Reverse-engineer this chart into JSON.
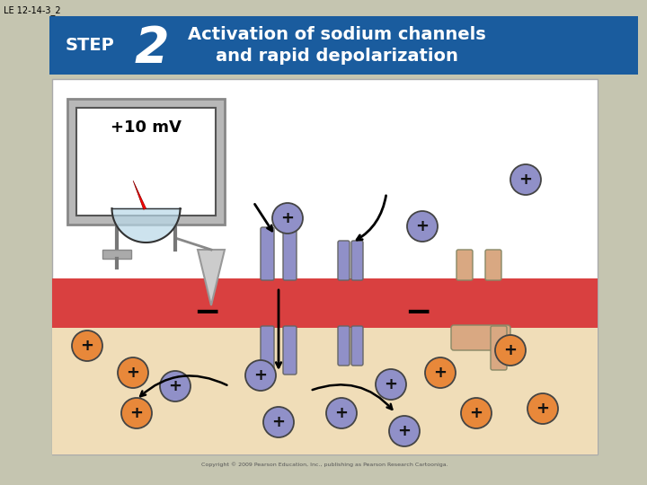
{
  "title_text": "Activation of sodium channels\nand rapid depolarization",
  "step_label": "STEP",
  "step_number": "2",
  "header_bg": "#1a5c9e",
  "outer_bg": "#c5c5b0",
  "inner_bg": "#ffffff",
  "membrane_color": "#d94040",
  "lower_bg": "#f0ddb8",
  "voltmeter_text": "+10 mV",
  "copyright": "Copyright © 2009 Pearson Education, Inc., publishing as Pearson Research Cartooniga.",
  "label_text": "LE 12-14-3_2",
  "purple_color": "#9090c8",
  "purple_dark": "#7070aa",
  "orange_color": "#e8883a",
  "peach_color": "#d9a882",
  "ion_font": 13
}
